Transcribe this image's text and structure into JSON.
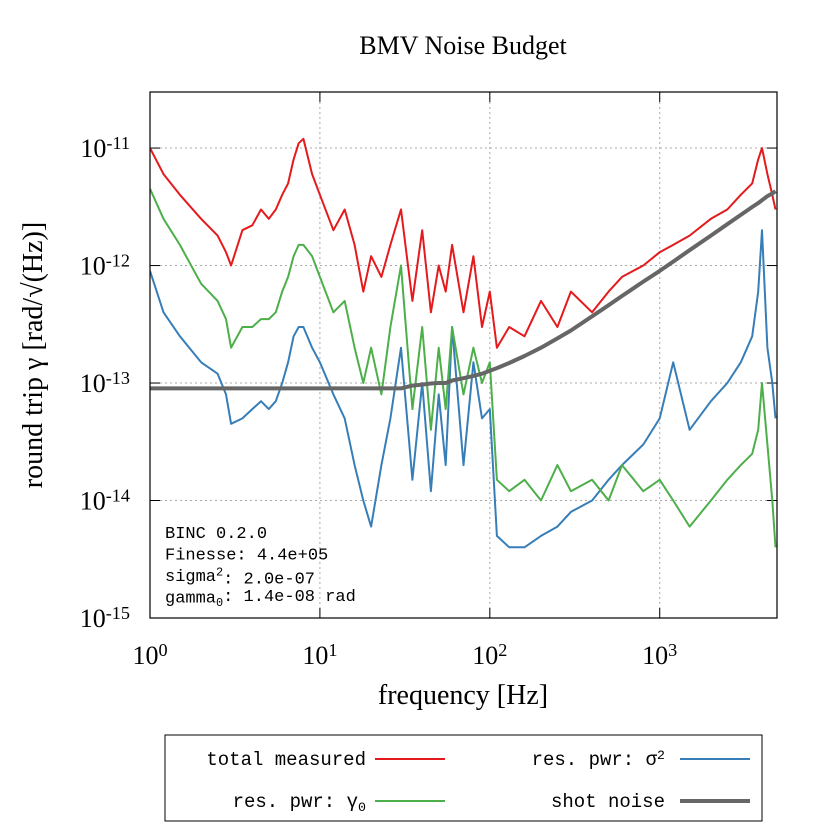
{
  "chart_data": {
    "type": "line",
    "title": "BMV Noise Budget",
    "x_label": "frequency [Hz]",
    "y_label": "round trip γ [rad/√(Hz)]",
    "log_x": true,
    "log_y": true,
    "grid": true,
    "legend": "bottom",
    "xlim": [
      1,
      4900
    ],
    "ylim": [
      1e-15,
      3e-11
    ],
    "xticks": [
      {
        "value": 1,
        "label": "10^0"
      },
      {
        "value": 10,
        "label": "10^1"
      },
      {
        "value": 100,
        "label": "10^2"
      },
      {
        "value": 1000,
        "label": "10^3"
      }
    ],
    "yticks": [
      {
        "value": 1e-15,
        "label": "10^-15"
      },
      {
        "value": 1e-14,
        "label": "10^-14"
      },
      {
        "value": 1e-13,
        "label": "10^-13"
      },
      {
        "value": 1e-12,
        "label": "10^-12"
      },
      {
        "value": 1e-11,
        "label": "10^-11"
      }
    ],
    "annotations": [
      "BINC 0.2.0",
      "Finesse: 4.4e+05",
      "sigma^2:  2.0e-07",
      "gamma_0:  1.4e-08 rad"
    ],
    "x": [
      1,
      1.2,
      1.5,
      2,
      2.5,
      2.8,
      3,
      3.5,
      4,
      4.5,
      5,
      5.5,
      6,
      6.5,
      7,
      7.5,
      8,
      9,
      10,
      12,
      14,
      16,
      18,
      20,
      23,
      26,
      30,
      35,
      40,
      45,
      50,
      55,
      60,
      70,
      80,
      90,
      100,
      110,
      130,
      160,
      200,
      250,
      300,
      400,
      500,
      600,
      800,
      1000,
      1200,
      1500,
      2000,
      2500,
      3000,
      3500,
      3800,
      4000,
      4300,
      4600,
      4800
    ],
    "series": [
      {
        "name": "total measured",
        "color": "#e41a1c",
        "width": 2,
        "values": [
          1e-11,
          6e-12,
          4e-12,
          2.5e-12,
          1.8e-12,
          1.3e-12,
          1e-12,
          2e-12,
          2.2e-12,
          3e-12,
          2.5e-12,
          3e-12,
          4e-12,
          5e-12,
          8e-12,
          1.1e-11,
          1.2e-11,
          6e-12,
          4e-12,
          2e-12,
          3e-12,
          1.5e-12,
          6e-13,
          1.2e-12,
          8e-13,
          1.5e-12,
          3e-12,
          5e-13,
          2e-12,
          4e-13,
          1e-12,
          6e-13,
          1.5e-12,
          4e-13,
          1.2e-12,
          3e-13,
          6e-13,
          2e-13,
          3e-13,
          2.5e-13,
          5e-13,
          3e-13,
          6e-13,
          4e-13,
          6e-13,
          8e-13,
          1e-12,
          1.3e-12,
          1.5e-12,
          1.8e-12,
          2.5e-12,
          3e-12,
          4e-12,
          5e-12,
          8e-12,
          1e-11,
          6e-12,
          4e-12,
          3e-12
        ]
      },
      {
        "name": "res. pwr: σ^2",
        "color": "#377eb8",
        "width": 2,
        "values": [
          9e-13,
          4e-13,
          2.5e-13,
          1.5e-13,
          1.2e-13,
          8e-14,
          4.5e-14,
          5e-14,
          6e-14,
          7e-14,
          6e-14,
          7e-14,
          1e-13,
          1.5e-13,
          2.5e-13,
          3e-13,
          3e-13,
          2e-13,
          1.5e-13,
          8e-14,
          5e-14,
          2e-14,
          1e-14,
          6e-15,
          2e-14,
          5e-14,
          2e-13,
          1.5e-14,
          1e-13,
          1.2e-14,
          8e-14,
          2e-14,
          3e-13,
          2e-14,
          1.5e-13,
          5e-14,
          6e-14,
          5e-15,
          4e-15,
          4e-15,
          5e-15,
          6e-15,
          8e-15,
          1e-14,
          1.5e-14,
          2e-14,
          3e-14,
          5e-14,
          1.5e-13,
          4e-14,
          7e-14,
          1e-13,
          1.5e-13,
          2.5e-13,
          6e-13,
          2e-12,
          2e-13,
          1e-13,
          5e-14
        ]
      },
      {
        "name": "res. pwr: γ_0",
        "color": "#4daf4a",
        "width": 2,
        "values": [
          4.5e-12,
          2.5e-12,
          1.5e-12,
          7e-13,
          5e-13,
          3.5e-13,
          2e-13,
          3e-13,
          3e-13,
          3.5e-13,
          3.5e-13,
          4e-13,
          6e-13,
          8e-13,
          1.2e-12,
          1.5e-12,
          1.5e-12,
          1.2e-12,
          8e-13,
          4e-13,
          5e-13,
          2e-13,
          1e-13,
          2e-13,
          8e-14,
          3e-13,
          1e-12,
          6e-14,
          3e-13,
          4e-14,
          2e-13,
          6e-14,
          3e-13,
          8e-14,
          2e-13,
          1e-13,
          1.5e-13,
          1.5e-14,
          1.2e-14,
          1.5e-14,
          1e-14,
          2e-14,
          1.2e-14,
          1.5e-14,
          1e-14,
          2e-14,
          1.2e-14,
          1.5e-14,
          1e-14,
          6e-15,
          1e-14,
          1.5e-14,
          2e-14,
          2.5e-14,
          4e-14,
          1e-13,
          3e-14,
          1e-14,
          4e-15
        ]
      },
      {
        "name": "shot noise",
        "color": "#666666",
        "width": 4,
        "values": [
          9e-14,
          9e-14,
          9e-14,
          9e-14,
          9e-14,
          9e-14,
          9e-14,
          9e-14,
          9e-14,
          9e-14,
          9e-14,
          9e-14,
          9e-14,
          9e-14,
          9e-14,
          9e-14,
          9e-14,
          9e-14,
          9e-14,
          9e-14,
          9e-14,
          9e-14,
          9e-14,
          9e-14,
          9e-14,
          9e-14,
          9e-14,
          9.5e-14,
          9.7e-14,
          9.9e-14,
          1e-13,
          1e-13,
          1.05e-13,
          1.1e-13,
          1.15e-13,
          1.2e-13,
          1.27e-13,
          1.34e-13,
          1.48e-13,
          1.7e-13,
          2e-13,
          2.4e-13,
          2.8e-13,
          3.7e-13,
          4.6e-13,
          5.5e-13,
          7.3e-13,
          9e-13,
          1.08e-12,
          1.35e-12,
          1.8e-12,
          2.25e-12,
          2.7e-12,
          3.15e-12,
          3.4e-12,
          3.6e-12,
          3.9e-12,
          4.1e-12,
          4.3e-12
        ]
      }
    ]
  }
}
